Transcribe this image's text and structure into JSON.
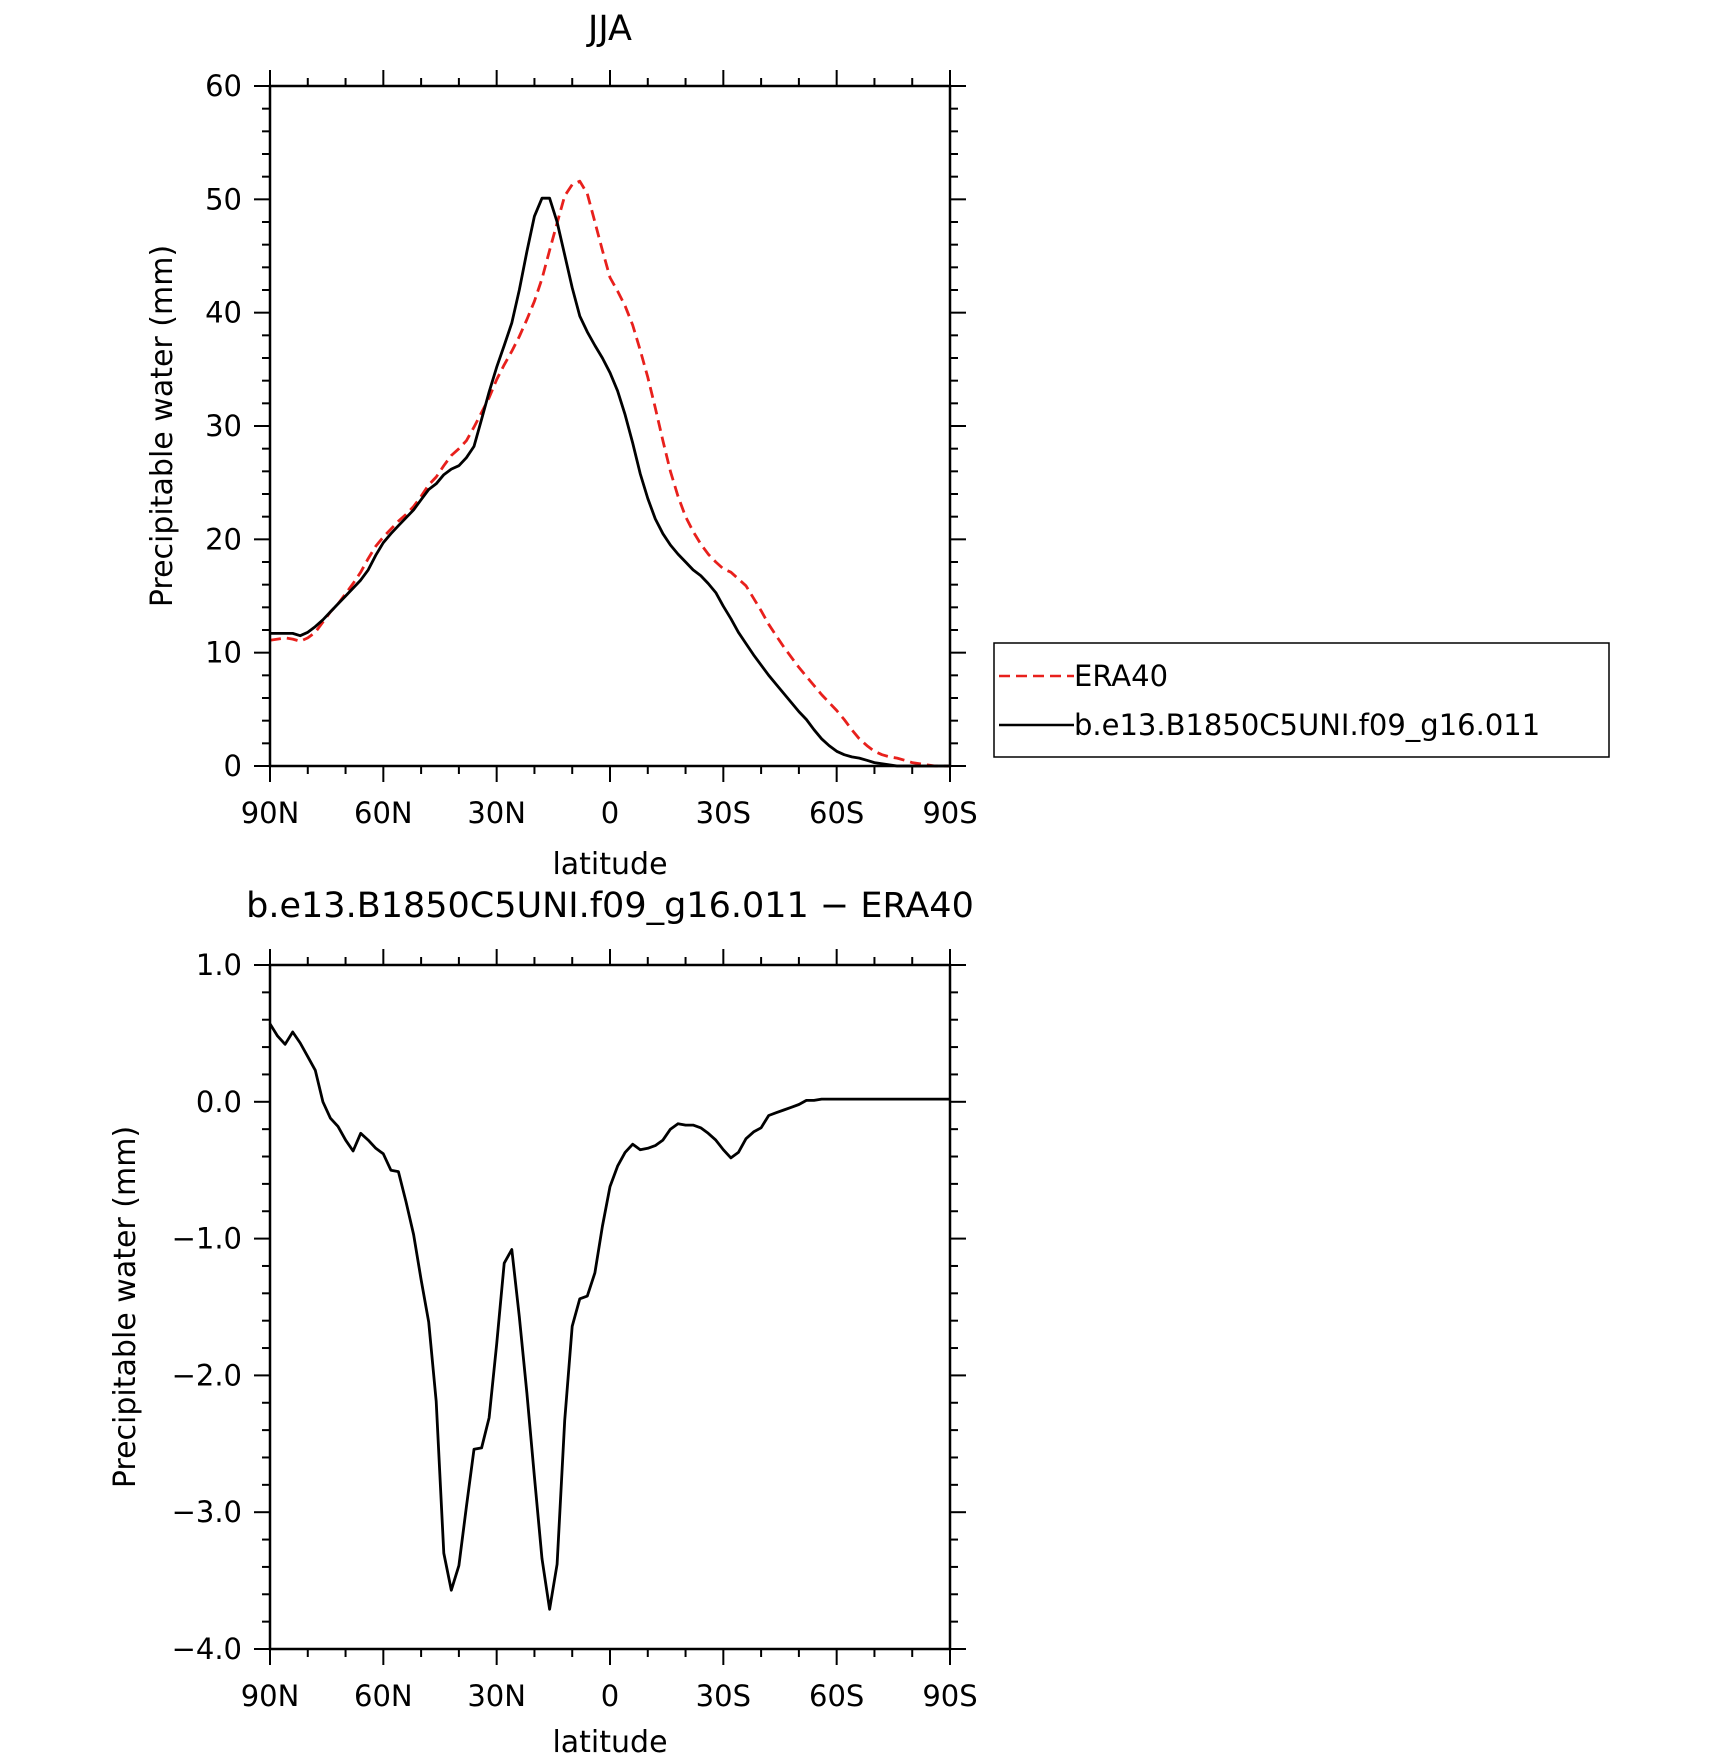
{
  "chart_data": [
    {
      "type": "line",
      "title": "JJA",
      "xlabel": "latitude",
      "ylabel": "Precipitable water (mm)",
      "xlim": [
        90,
        -90
      ],
      "ylim": [
        0,
        60
      ],
      "x_ticks": [
        90,
        60,
        30,
        0,
        -30,
        -60,
        -90
      ],
      "x_tick_labels": [
        "90N",
        "60N",
        "30N",
        "0",
        "30S",
        "60S",
        "90S"
      ],
      "y_ticks": [
        0,
        10,
        20,
        30,
        40,
        50,
        60
      ],
      "y_tick_labels": [
        "0",
        "10",
        "20",
        "30",
        "40",
        "50",
        "60"
      ],
      "legend_position": "right",
      "series": [
        {
          "name": "ERA40",
          "color": "#e8201c",
          "dash": "dashed",
          "x": [
            90,
            88,
            86,
            84,
            82,
            80,
            78,
            76,
            74,
            72,
            70,
            68,
            66,
            64,
            62,
            60,
            58,
            56,
            54,
            52,
            50,
            48,
            46,
            44,
            42,
            40,
            38,
            36,
            34,
            32,
            30,
            28,
            26,
            24,
            22,
            20,
            18,
            16,
            14,
            12,
            10,
            8,
            6,
            4,
            2,
            0,
            -2,
            -4,
            -6,
            -8,
            -10,
            -12,
            -14,
            -16,
            -18,
            -20,
            -22,
            -24,
            -26,
            -28,
            -30,
            -32,
            -34,
            -36,
            -38,
            -40,
            -42,
            -44,
            -46,
            -48,
            -50,
            -52,
            -54,
            -56,
            -58,
            -60,
            -62,
            -64,
            -66,
            -68,
            -70,
            -72,
            -74,
            -76,
            -78,
            -80,
            -82,
            -84,
            -86,
            -88,
            -90
          ],
          "y": [
            11.1,
            11.2,
            11.3,
            11.2,
            11.0,
            11.3,
            11.8,
            12.7,
            13.6,
            14.3,
            15.2,
            16.1,
            17.1,
            18.3,
            19.4,
            20.2,
            20.9,
            21.6,
            22.2,
            22.9,
            23.8,
            24.8,
            25.5,
            26.5,
            27.4,
            28.0,
            28.7,
            29.9,
            31.2,
            32.5,
            34.1,
            35.4,
            36.6,
            37.9,
            39.4,
            41.0,
            43.0,
            45.5,
            47.9,
            50.3,
            51.3,
            51.6,
            50.5,
            48.0,
            45.5,
            43.1,
            41.9,
            40.6,
            38.9,
            36.7,
            34.3,
            31.6,
            28.7,
            26.0,
            23.8,
            22.0,
            20.7,
            19.6,
            18.7,
            18.0,
            17.4,
            17.1,
            16.5,
            15.9,
            14.8,
            13.7,
            12.5,
            11.5,
            10.5,
            9.6,
            8.7,
            7.9,
            7.1,
            6.3,
            5.6,
            4.9,
            4.1,
            3.2,
            2.4,
            1.8,
            1.3,
            1.0,
            0.8,
            0.7,
            0.5,
            0.3,
            0.2,
            0.1,
            0.0,
            0.0,
            0.0
          ]
        },
        {
          "name": "b.e13.B1850C5UNI.f09_g16.011",
          "color": "#000000",
          "dash": "solid",
          "x": [
            90,
            88,
            86,
            84,
            82,
            80,
            78,
            76,
            74,
            72,
            70,
            68,
            66,
            64,
            62,
            60,
            58,
            56,
            54,
            52,
            50,
            48,
            46,
            44,
            42,
            40,
            38,
            36,
            34,
            32,
            30,
            28,
            26,
            24,
            22,
            20,
            18,
            16,
            14,
            12,
            10,
            8,
            6,
            4,
            2,
            0,
            -2,
            -4,
            -6,
            -8,
            -10,
            -12,
            -14,
            -16,
            -18,
            -20,
            -22,
            -24,
            -26,
            -28,
            -30,
            -32,
            -34,
            -36,
            -38,
            -40,
            -42,
            -44,
            -46,
            -48,
            -50,
            -52,
            -54,
            -56,
            -58,
            -60,
            -62,
            -64,
            -66,
            -68,
            -70,
            -72,
            -74,
            -76,
            -78,
            -80,
            -82,
            -84,
            -86,
            -88,
            -90
          ],
          "y": [
            11.7,
            11.7,
            11.7,
            11.7,
            11.5,
            11.8,
            12.3,
            12.9,
            13.6,
            14.3,
            15.0,
            15.7,
            16.4,
            17.3,
            18.6,
            19.7,
            20.5,
            21.2,
            21.9,
            22.6,
            23.5,
            24.4,
            24.9,
            25.7,
            26.2,
            26.5,
            27.2,
            28.2,
            30.6,
            33.0,
            35.2,
            37.1,
            39.1,
            42.0,
            45.4,
            48.5,
            50.1,
            50.1,
            48.0,
            45.1,
            42.2,
            39.7,
            38.3,
            37.1,
            36.0,
            34.7,
            33.1,
            31.0,
            28.5,
            25.8,
            23.6,
            21.8,
            20.5,
            19.5,
            18.7,
            18.0,
            17.3,
            16.8,
            16.1,
            15.3,
            14.1,
            13.0,
            11.8,
            10.8,
            9.8,
            8.9,
            8.0,
            7.2,
            6.4,
            5.6,
            4.8,
            4.1,
            3.2,
            2.4,
            1.8,
            1.3,
            1.0,
            0.8,
            0.7,
            0.5,
            0.3,
            0.2,
            0.1,
            0.0,
            0.0,
            0.0,
            0.0,
            0.0,
            0.0,
            0.0,
            0.0
          ]
        }
      ]
    },
    {
      "type": "line",
      "title": "b.e13.B1850C5UNI.f09_g16.011 − ERA40",
      "xlabel": "latitude",
      "ylabel": "Precipitable water (mm)",
      "xlim": [
        90,
        -90
      ],
      "ylim": [
        -4.0,
        1.0
      ],
      "x_ticks": [
        90,
        60,
        30,
        0,
        -30,
        -60,
        -90
      ],
      "x_tick_labels": [
        "90N",
        "60N",
        "30N",
        "0",
        "30S",
        "60S",
        "90S"
      ],
      "y_ticks": [
        1.0,
        0.0,
        -1.0,
        -2.0,
        -3.0,
        -4.0
      ],
      "y_tick_labels": [
        "1.0",
        "0.0",
        "−1.0",
        "−2.0",
        "−3.0",
        "−4.0"
      ],
      "series": [
        {
          "color": "#000000",
          "dash": "solid",
          "x": [
            90,
            88,
            86,
            84,
            82,
            80,
            78,
            76,
            74,
            72,
            70,
            68,
            66,
            64,
            62,
            60,
            58,
            56,
            54,
            52,
            50,
            48,
            46,
            44,
            42,
            40,
            38,
            36,
            34,
            32,
            30,
            28,
            26,
            24,
            22,
            20,
            18,
            16,
            14,
            12,
            10,
            8,
            6,
            4,
            2,
            0,
            -2,
            -4,
            -6,
            -8,
            -10,
            -12,
            -14,
            -16,
            -18,
            -20,
            -22,
            -24,
            -26,
            -28,
            -30,
            -32,
            -34,
            -36,
            -38,
            -40,
            -42,
            -44,
            -46,
            -48,
            -50,
            -52,
            -54,
            -56,
            -58,
            -60,
            -62,
            -64,
            -66,
            -68,
            -70,
            -72,
            -74,
            -76,
            -78,
            -80,
            -82,
            -84,
            -86,
            -88,
            -90
          ],
          "y": [
            0.57,
            0.48,
            0.42,
            0.51,
            0.43,
            0.33,
            0.23,
            0.0,
            -0.12,
            -0.18,
            -0.28,
            -0.36,
            -0.23,
            -0.28,
            -0.34,
            -0.38,
            -0.5,
            -0.51,
            -0.73,
            -0.97,
            -1.3,
            -1.61,
            -2.19,
            -3.3,
            -3.57,
            -3.39,
            -2.96,
            -2.54,
            -2.53,
            -2.31,
            -1.77,
            -1.18,
            -1.08,
            -1.57,
            -2.13,
            -2.74,
            -3.34,
            -3.71,
            -3.38,
            -2.33,
            -1.64,
            -1.44,
            -1.42,
            -1.25,
            -0.91,
            -0.62,
            -0.47,
            -0.37,
            -0.31,
            -0.35,
            -0.34,
            -0.32,
            -0.28,
            -0.2,
            -0.16,
            -0.17,
            -0.17,
            -0.19,
            -0.23,
            -0.28,
            -0.35,
            -0.41,
            -0.37,
            -0.27,
            -0.22,
            -0.19,
            -0.1,
            -0.08,
            -0.06,
            -0.04,
            -0.02,
            0.01,
            0.01,
            0.02,
            0.02,
            0.02,
            0.02,
            0.02,
            0.02,
            0.02,
            0.02,
            0.02,
            0.02,
            0.02,
            0.02,
            0.02,
            0.02,
            0.02,
            0.02,
            0.02,
            0.02
          ]
        }
      ]
    }
  ]
}
